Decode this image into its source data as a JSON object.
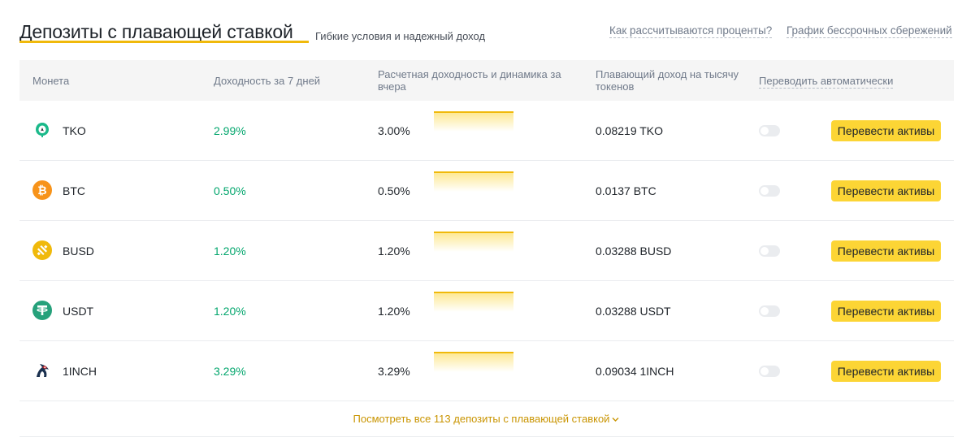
{
  "header": {
    "title": "Депозиты с плавающей ставкой",
    "subtitle": "Гибкие условия и надежный доход",
    "link_interest": "Как рассчитываются проценты?",
    "link_schedule": "График бессрочных сбережений"
  },
  "table": {
    "columns": {
      "coin": "Монета",
      "apy7": "Доходность за 7 дней",
      "apy_yesterday": "Расчетная доходность и динамика за вчера",
      "income": "Плавающий доход на тысячу токенов",
      "auto": "Переводить автоматически"
    },
    "rows": [
      {
        "coin": "TKO",
        "icon": "tko-icon",
        "apy7": "2.99%",
        "apy_yesterday": "3.00%",
        "income": "0.08219 TKO",
        "auto_transfer": false,
        "button": "Перевести активы"
      },
      {
        "coin": "BTC",
        "icon": "btc-icon",
        "apy7": "0.50%",
        "apy_yesterday": "0.50%",
        "income": "0.0137 BTC",
        "auto_transfer": false,
        "button": "Перевести активы"
      },
      {
        "coin": "BUSD",
        "icon": "busd-icon",
        "apy7": "1.20%",
        "apy_yesterday": "1.20%",
        "income": "0.03288 BUSD",
        "auto_transfer": false,
        "button": "Перевести активы"
      },
      {
        "coin": "USDT",
        "icon": "usdt-icon",
        "apy7": "1.20%",
        "apy_yesterday": "1.20%",
        "income": "0.03288 USDT",
        "auto_transfer": false,
        "button": "Перевести активы"
      },
      {
        "coin": "1INCH",
        "icon": "1inch-icon",
        "apy7": "3.29%",
        "apy_yesterday": "3.29%",
        "income": "0.09034 1INCH",
        "auto_transfer": false,
        "button": "Перевести активы"
      }
    ]
  },
  "footer": {
    "view_all": "Посмотреть все 113 депозиты с плавающей ставкой"
  },
  "colors": {
    "accent": "#f0b90b",
    "button": "#fcd535",
    "positive": "#03a66d",
    "link": "#c99400"
  }
}
